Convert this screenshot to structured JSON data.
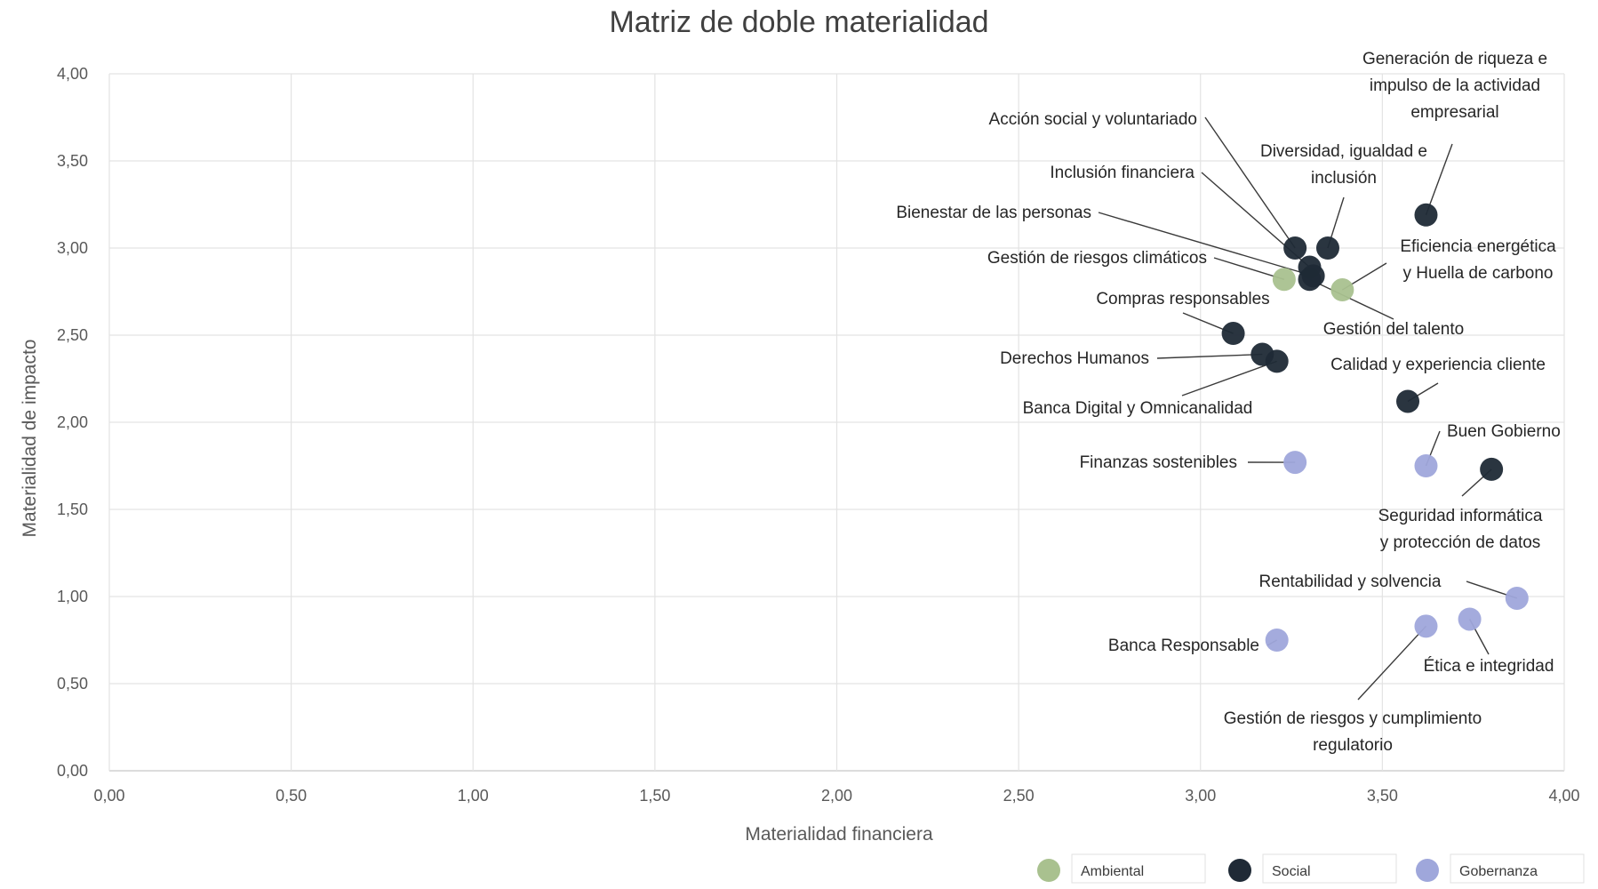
{
  "chart_data": {
    "type": "scatter",
    "title": "Matriz de doble materialidad",
    "xlabel": "Materialidad financiera",
    "ylabel": "Materialidad de impacto",
    "xlim": [
      0,
      4
    ],
    "ylim": [
      0,
      4
    ],
    "x_ticks": [
      "0,00",
      "0,50",
      "1,00",
      "1,50",
      "2,00",
      "2,50",
      "3,00",
      "3,50",
      "4,00"
    ],
    "y_ticks": [
      "0,00",
      "0,50",
      "1,00",
      "1,50",
      "2,00",
      "2,50",
      "3,00",
      "3,50",
      "4,00"
    ],
    "grid": true,
    "legend_position": "bottom-right",
    "series": [
      {
        "name": "Ambiental",
        "color": "#a9c18f",
        "points": [
          {
            "label": "Gestión de riesgos climáticos",
            "x": 3.23,
            "y": 2.82
          },
          {
            "label": "Eficiencia energética y Huella de carbono",
            "x": 3.39,
            "y": 2.76
          }
        ]
      },
      {
        "name": "Social",
        "color": "#1f2a36",
        "points": [
          {
            "label": "Generación de riqueza e impulso de la actividad empresarial",
            "x": 3.62,
            "y": 3.19
          },
          {
            "label": "Acción social y voluntariado",
            "x": 3.26,
            "y": 3.0
          },
          {
            "label": "Diversidad, igualdad e inclusión",
            "x": 3.35,
            "y": 3.0
          },
          {
            "label": "Inclusión financiera",
            "x": 3.3,
            "y": 2.89
          },
          {
            "label": "Bienestar de las personas",
            "x": 3.31,
            "y": 2.84
          },
          {
            "label": "Gestión del talento",
            "x": 3.3,
            "y": 2.82
          },
          {
            "label": "Compras responsables",
            "x": 3.09,
            "y": 2.51
          },
          {
            "label": "Derechos Humanos",
            "x": 3.17,
            "y": 2.39
          },
          {
            "label": "Banca Digital y Omnicanalidad",
            "x": 3.21,
            "y": 2.35
          },
          {
            "label": "Calidad y experiencia cliente",
            "x": 3.57,
            "y": 2.12
          },
          {
            "label": "Seguridad informática y protección de datos",
            "x": 3.8,
            "y": 1.73
          }
        ]
      },
      {
        "name": "Gobernanza",
        "color": "#9fa7db",
        "points": [
          {
            "label": "Finanzas sostenibles",
            "x": 3.26,
            "y": 1.77
          },
          {
            "label": "Buen Gobierno",
            "x": 3.62,
            "y": 1.75
          },
          {
            "label": "Rentabilidad y solvencia",
            "x": 3.87,
            "y": 0.99
          },
          {
            "label": "Banca Responsable",
            "x": 3.21,
            "y": 0.75
          },
          {
            "label": "Gestión de riesgos y cumplimiento regulatorio",
            "x": 3.62,
            "y": 0.83
          },
          {
            "label": "Ética e integridad",
            "x": 3.74,
            "y": 0.87
          }
        ]
      }
    ]
  }
}
